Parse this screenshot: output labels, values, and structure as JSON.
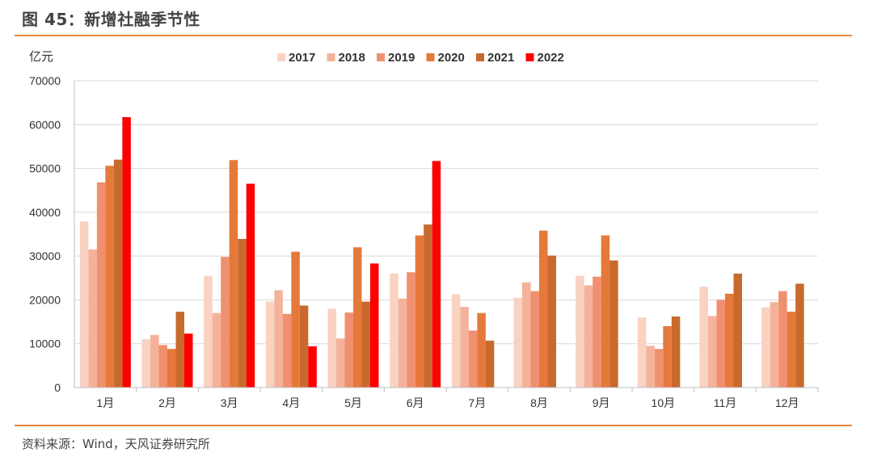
{
  "header": {
    "title": "图 45：新增社融季节性"
  },
  "footer": {
    "source": "资料来源：Wind，天风证券研究所"
  },
  "chart_data": {
    "type": "bar",
    "title": "",
    "xlabel": "",
    "ylabel": "亿元",
    "ylim": [
      0,
      70000
    ],
    "yticks": [
      0,
      10000,
      20000,
      30000,
      40000,
      50000,
      60000,
      70000
    ],
    "grid": true,
    "legend_position": "top-center",
    "categories": [
      "1月",
      "2月",
      "3月",
      "4月",
      "5月",
      "6月",
      "7月",
      "8月",
      "9月",
      "10月",
      "11月",
      "12月"
    ],
    "series": [
      {
        "name": "2017",
        "color": "#f9d2c2",
        "values": [
          37900,
          11000,
          25500,
          19600,
          18000,
          26000,
          21300,
          20500,
          25500,
          16000,
          23000,
          18300
        ]
      },
      {
        "name": "2018",
        "color": "#f5b29a",
        "values": [
          31500,
          12000,
          17000,
          22200,
          11200,
          20300,
          18400,
          24000,
          23300,
          9500,
          16300,
          19500
        ]
      },
      {
        "name": "2019",
        "color": "#f09070",
        "values": [
          46800,
          9700,
          29800,
          16800,
          17100,
          26300,
          13000,
          22000,
          25300,
          8800,
          20000,
          22000
        ]
      },
      {
        "name": "2020",
        "color": "#e5793a",
        "values": [
          50600,
          8800,
          51900,
          31000,
          32000,
          34700,
          17000,
          35800,
          34700,
          14000,
          21400,
          17300
        ]
      },
      {
        "name": "2021",
        "color": "#c86a2e",
        "values": [
          52000,
          17300,
          33900,
          18700,
          19600,
          37200,
          10700,
          30100,
          29000,
          16200,
          26000,
          23700
        ]
      },
      {
        "name": "2022",
        "color": "#ff0000",
        "values": [
          61700,
          12300,
          46500,
          9400,
          28300,
          51700,
          null,
          null,
          null,
          null,
          null,
          null
        ]
      }
    ]
  }
}
